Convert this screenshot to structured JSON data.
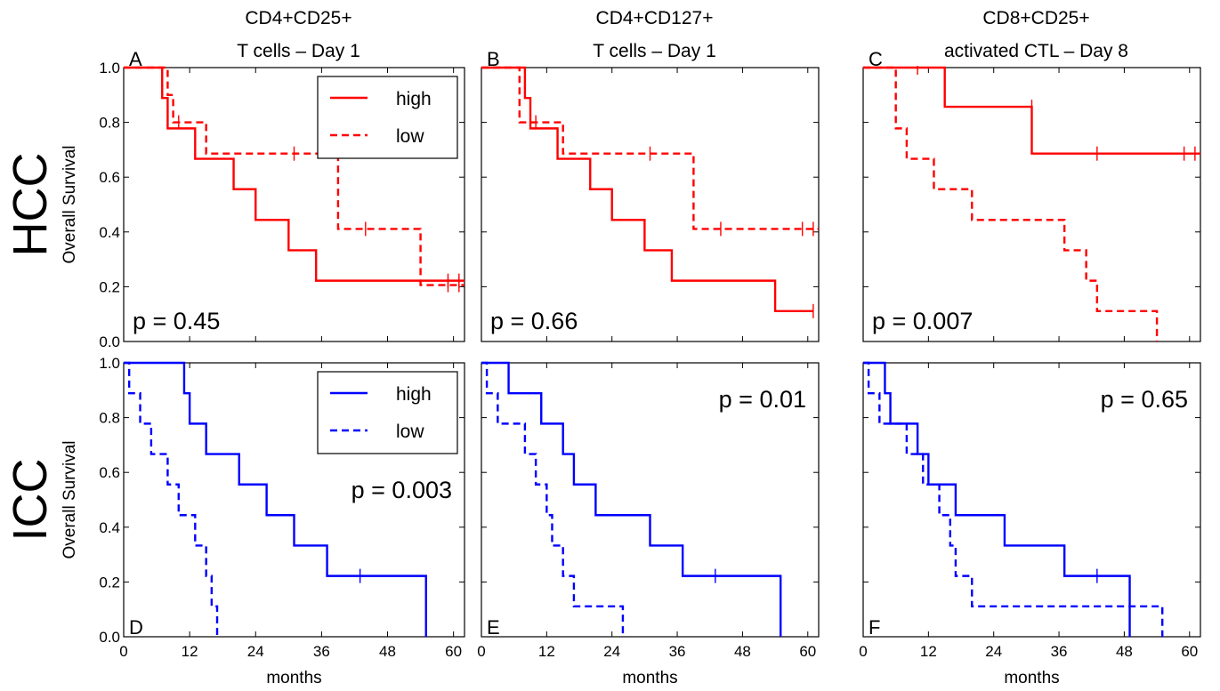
{
  "figure": {
    "col_titles": [
      [
        "CD4+CD25+",
        "T cells – Day 1"
      ],
      [
        "CD4+CD127+",
        "T cells – Day 1"
      ],
      [
        "CD8+CD25+",
        "activated CTL – Day 8"
      ]
    ],
    "row_labels": [
      "HCC",
      "ICC"
    ],
    "ylabel": "Overall Survival",
    "xlabel": "months",
    "x_ticks": [
      "0",
      "12",
      "24",
      "36",
      "48",
      "60"
    ],
    "y_ticks": [
      "0.0",
      "0.2",
      "0.4",
      "0.6",
      "0.8",
      "1.0"
    ],
    "legends": [
      {
        "items": [
          {
            "label": "high",
            "style": "solid"
          },
          {
            "label": "low",
            "style": "dashed"
          }
        ],
        "color": "#ff0000"
      },
      {
        "items": [
          {
            "label": "high",
            "style": "solid"
          },
          {
            "label": "low",
            "style": "dashed"
          }
        ],
        "color": "#0000ff"
      }
    ]
  },
  "chart_data": [
    {
      "type": "line",
      "panel": "A",
      "row": 0,
      "col": 0,
      "color": "#ff0000",
      "pvalue": "p = 0.45",
      "pvalue_pos": "bottom-left",
      "xlim": [
        0,
        62
      ],
      "ylim": [
        0,
        1
      ],
      "series": [
        {
          "name": "high",
          "style": "solid",
          "steps": [
            [
              0,
              1.0
            ],
            [
              7,
              0.889
            ],
            [
              8,
              0.778
            ],
            [
              13,
              0.667
            ],
            [
              20,
              0.556
            ],
            [
              24,
              0.444
            ],
            [
              30,
              0.333
            ],
            [
              35,
              0.222
            ],
            [
              62,
              0.222
            ]
          ],
          "censors": [
            [
              59,
              0.222
            ],
            [
              61,
              0.222
            ]
          ]
        },
        {
          "name": "low",
          "style": "dashed",
          "steps": [
            [
              0,
              1.0
            ],
            [
              8,
              0.9
            ],
            [
              9,
              0.8
            ],
            [
              15,
              0.686
            ],
            [
              39,
              0.411
            ],
            [
              54,
              0.206
            ],
            [
              62,
              0.206
            ]
          ],
          "censors": [
            [
              10,
              0.8
            ],
            [
              31,
              0.686
            ],
            [
              44,
              0.411
            ],
            [
              59,
              0.206
            ],
            [
              61,
              0.206
            ]
          ]
        }
      ]
    },
    {
      "type": "line",
      "panel": "B",
      "row": 0,
      "col": 1,
      "color": "#ff0000",
      "pvalue": "p = 0.66",
      "pvalue_pos": "bottom-left",
      "xlim": [
        0,
        62
      ],
      "ylim": [
        0,
        1
      ],
      "series": [
        {
          "name": "high",
          "style": "solid",
          "steps": [
            [
              0,
              1.0
            ],
            [
              8,
              0.889
            ],
            [
              9,
              0.778
            ],
            [
              14,
              0.667
            ],
            [
              20,
              0.556
            ],
            [
              24,
              0.444
            ],
            [
              30,
              0.333
            ],
            [
              35,
              0.222
            ],
            [
              54,
              0.111
            ],
            [
              61,
              0.111
            ]
          ],
          "censors": [
            [
              61,
              0.111
            ]
          ]
        },
        {
          "name": "low",
          "style": "dashed",
          "steps": [
            [
              0,
              1.0
            ],
            [
              7,
              0.8
            ],
            [
              15,
              0.686
            ],
            [
              39,
              0.411
            ],
            [
              62,
              0.411
            ]
          ],
          "censors": [
            [
              10,
              0.8
            ],
            [
              31,
              0.686
            ],
            [
              44,
              0.411
            ],
            [
              59,
              0.411
            ],
            [
              61,
              0.411
            ]
          ]
        }
      ]
    },
    {
      "type": "line",
      "panel": "C",
      "row": 0,
      "col": 2,
      "color": "#ff0000",
      "pvalue": "p = 0.007",
      "pvalue_pos": "bottom-left",
      "xlim": [
        0,
        62
      ],
      "ylim": [
        0,
        1
      ],
      "series": [
        {
          "name": "high",
          "style": "solid",
          "steps": [
            [
              0,
              1.0
            ],
            [
              15,
              0.857
            ],
            [
              31,
              0.686
            ],
            [
              62,
              0.686
            ]
          ],
          "censors": [
            [
              10,
              1.0
            ],
            [
              31,
              0.857
            ],
            [
              43,
              0.686
            ],
            [
              59,
              0.686
            ],
            [
              61,
              0.686
            ]
          ]
        },
        {
          "name": "low",
          "style": "dashed",
          "steps": [
            [
              0,
              1.0
            ],
            [
              6,
              0.778
            ],
            [
              8,
              0.667
            ],
            [
              13,
              0.556
            ],
            [
              20,
              0.444
            ],
            [
              37,
              0.333
            ],
            [
              41,
              0.222
            ],
            [
              43,
              0.111
            ],
            [
              54,
              0.0
            ]
          ],
          "censors": []
        }
      ]
    },
    {
      "type": "line",
      "panel": "D",
      "row": 1,
      "col": 0,
      "color": "#0000ff",
      "pvalue": "p = 0.003",
      "pvalue_pos": "middle-right",
      "xlim": [
        0,
        62
      ],
      "ylim": [
        0,
        1
      ],
      "series": [
        {
          "name": "high",
          "style": "solid",
          "steps": [
            [
              0,
              1.0
            ],
            [
              11,
              0.889
            ],
            [
              12,
              0.778
            ],
            [
              15,
              0.667
            ],
            [
              21,
              0.556
            ],
            [
              26,
              0.444
            ],
            [
              31,
              0.333
            ],
            [
              37,
              0.222
            ],
            [
              55,
              0.0
            ]
          ],
          "censors": [
            [
              43,
              0.222
            ]
          ]
        },
        {
          "name": "low",
          "style": "dashed",
          "steps": [
            [
              0,
              1.0
            ],
            [
              1,
              0.889
            ],
            [
              3,
              0.778
            ],
            [
              5,
              0.667
            ],
            [
              8,
              0.556
            ],
            [
              10,
              0.444
            ],
            [
              13,
              0.333
            ],
            [
              15,
              0.222
            ],
            [
              16,
              0.111
            ],
            [
              17,
              0.0
            ]
          ],
          "censors": []
        }
      ]
    },
    {
      "type": "line",
      "panel": "E",
      "row": 1,
      "col": 1,
      "color": "#0000ff",
      "pvalue": "p = 0.01",
      "pvalue_pos": "top-right",
      "xlim": [
        0,
        62
      ],
      "ylim": [
        0,
        1
      ],
      "series": [
        {
          "name": "high",
          "style": "solid",
          "steps": [
            [
              0,
              1.0
            ],
            [
              5,
              0.889
            ],
            [
              11,
              0.778
            ],
            [
              15,
              0.667
            ],
            [
              17,
              0.556
            ],
            [
              21,
              0.444
            ],
            [
              31,
              0.333
            ],
            [
              37,
              0.222
            ],
            [
              55,
              0.0
            ]
          ],
          "censors": [
            [
              43,
              0.222
            ]
          ]
        },
        {
          "name": "low",
          "style": "dashed",
          "steps": [
            [
              0,
              1.0
            ],
            [
              1,
              0.889
            ],
            [
              3,
              0.778
            ],
            [
              8,
              0.667
            ],
            [
              10,
              0.556
            ],
            [
              12,
              0.444
            ],
            [
              13,
              0.333
            ],
            [
              15,
              0.222
            ],
            [
              17,
              0.111
            ],
            [
              26,
              0.0
            ]
          ],
          "censors": []
        }
      ]
    },
    {
      "type": "line",
      "panel": "F",
      "row": 1,
      "col": 2,
      "color": "#0000ff",
      "pvalue": "p = 0.65",
      "pvalue_pos": "top-right",
      "xlim": [
        0,
        62
      ],
      "ylim": [
        0,
        1
      ],
      "series": [
        {
          "name": "high",
          "style": "solid",
          "steps": [
            [
              0,
              1.0
            ],
            [
              4,
              0.889
            ],
            [
              5,
              0.778
            ],
            [
              10,
              0.667
            ],
            [
              12,
              0.556
            ],
            [
              17,
              0.444
            ],
            [
              26,
              0.333
            ],
            [
              37,
              0.222
            ],
            [
              49,
              0.0
            ]
          ],
          "censors": [
            [
              43,
              0.222
            ]
          ]
        },
        {
          "name": "low",
          "style": "dashed",
          "steps": [
            [
              0,
              1.0
            ],
            [
              1,
              0.889
            ],
            [
              3,
              0.778
            ],
            [
              8,
              0.667
            ],
            [
              11,
              0.556
            ],
            [
              14,
              0.444
            ],
            [
              16,
              0.333
            ],
            [
              17,
              0.222
            ],
            [
              20,
              0.111
            ],
            [
              31,
              0.111
            ],
            [
              55,
              0.0
            ]
          ],
          "censors": []
        }
      ]
    }
  ]
}
